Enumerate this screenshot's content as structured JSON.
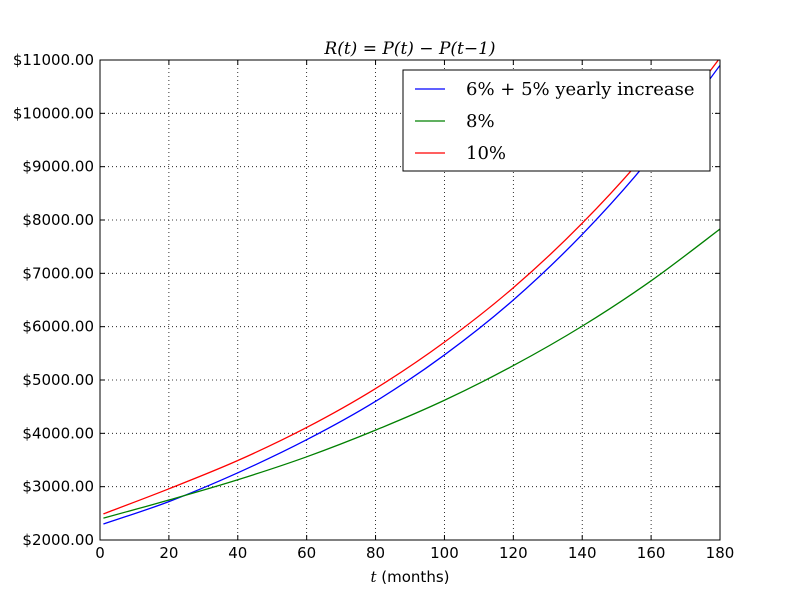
{
  "chart_data": {
    "type": "line",
    "title": "R(t) = P(t) − P(t−1)",
    "xlabel_var": "t",
    "xlabel_unit": " (months)",
    "ylabel": "",
    "xlim": [
      0,
      180
    ],
    "ylim": [
      2000,
      11000
    ],
    "x_ticks": [
      0,
      20,
      40,
      60,
      80,
      100,
      120,
      140,
      160,
      180
    ],
    "x_tick_labels": [
      "0",
      "20",
      "40",
      "60",
      "80",
      "100",
      "120",
      "140",
      "160",
      "180"
    ],
    "y_ticks": [
      2000,
      3000,
      4000,
      5000,
      6000,
      7000,
      8000,
      9000,
      10000,
      11000
    ],
    "y_tick_labels": [
      "$2000.00",
      "$3000.00",
      "$4000.00",
      "$5000.00",
      "$6000.00",
      "$7000.00",
      "$8000.00",
      "$9000.00",
      "$10000.00",
      "$11000.00"
    ],
    "grid": true,
    "legend_position": "top-right",
    "x": [
      1,
      20,
      40,
      60,
      80,
      100,
      120,
      140,
      160,
      180
    ],
    "series": [
      {
        "name": "6% + 5% yearly increase",
        "color": "#0000ff",
        "values": [
          2300,
          2720,
          3260,
          3880,
          4600,
          5470,
          6500,
          7730,
          9180,
          10900
        ]
      },
      {
        "name": "8%",
        "color": "#008000",
        "values": [
          2410,
          2750,
          3130,
          3560,
          4060,
          4620,
          5270,
          6010,
          6860,
          7830
        ]
      },
      {
        "name": "10%",
        "color": "#ff0000",
        "values": [
          2490,
          2960,
          3490,
          4110,
          4840,
          5710,
          6730,
          7940,
          9360,
          11040
        ]
      }
    ]
  }
}
